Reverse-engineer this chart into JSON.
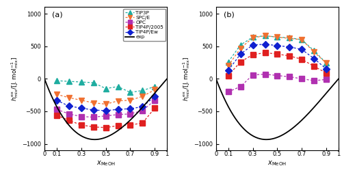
{
  "x_data": [
    0.1,
    0.2,
    0.3,
    0.4,
    0.5,
    0.6,
    0.7,
    0.8,
    0.9
  ],
  "panel_a": {
    "TIP3P": [
      -30,
      -40,
      -50,
      -60,
      -150,
      -120,
      -210,
      -180,
      -120
    ],
    "SPCE": [
      -240,
      -290,
      -330,
      -370,
      -390,
      -340,
      -330,
      -270,
      -170
    ],
    "OPC": [
      -470,
      -540,
      -580,
      -590,
      -570,
      -550,
      -540,
      -490,
      -330
    ],
    "TIP4P2005": [
      -560,
      -640,
      -710,
      -740,
      -750,
      -720,
      -710,
      -680,
      -450
    ],
    "TIP4PEw": [
      -330,
      -420,
      -450,
      -480,
      -490,
      -470,
      -460,
      -430,
      -270
    ]
  },
  "panel_b": {
    "TIP3P": [
      260,
      520,
      640,
      660,
      640,
      630,
      600,
      430,
      240
    ],
    "SPCE": [
      200,
      470,
      630,
      660,
      640,
      620,
      600,
      410,
      240
    ],
    "OPC": [
      -200,
      -120,
      60,
      70,
      50,
      30,
      0,
      -30,
      -10
    ],
    "TIP4P2005": [
      50,
      260,
      370,
      400,
      380,
      350,
      300,
      190,
      90
    ],
    "TIP4PEw": [
      130,
      380,
      520,
      530,
      510,
      490,
      450,
      310,
      150
    ]
  },
  "colors": {
    "TIP3P": "#1fada0",
    "SPCE": "#f07030",
    "OPC": "#b030b0",
    "TIP4P2005": "#e02020",
    "TIP4PEw": "#1020d0"
  },
  "markers": {
    "TIP3P": "^",
    "SPCE": "v",
    "OPC": "s",
    "TIP4P2005": "s",
    "TIP4PEw": "D"
  }
}
